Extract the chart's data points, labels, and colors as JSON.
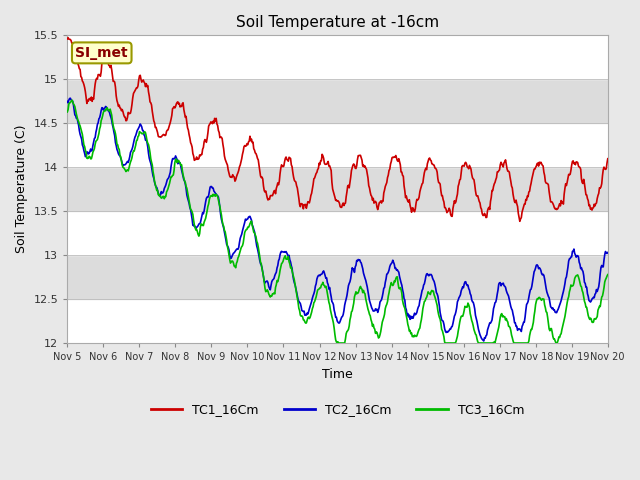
{
  "title": "Soil Temperature at -16cm",
  "xlabel": "Time",
  "ylabel": "Soil Temperature (C)",
  "ylim": [
    12.0,
    15.5
  ],
  "yticks": [
    12.0,
    12.5,
    13.0,
    13.5,
    14.0,
    14.5,
    15.0,
    15.5
  ],
  "xtick_labels": [
    "Nov 5",
    "Nov 6",
    "Nov 7",
    "Nov 8",
    "Nov 9",
    "Nov 10",
    "Nov 11",
    "Nov 12",
    "Nov 13",
    "Nov 14",
    "Nov 15",
    "Nov 16",
    "Nov 17",
    "Nov 18",
    "Nov 19",
    "Nov 20"
  ],
  "fig_bg_color": "#e8e8e8",
  "plot_bg_color": "#f0f0f0",
  "band_colors": [
    "#ffffff",
    "#dcdcdc"
  ],
  "line_colors": [
    "#cc0000",
    "#0000cc",
    "#00bb00"
  ],
  "line_width": 1.2,
  "legend_labels": [
    "TC1_16Cm",
    "TC2_16Cm",
    "TC3_16Cm"
  ],
  "annotation_text": "SI_met",
  "annotation_bg": "#ffffcc",
  "annotation_border": "#999900",
  "annotation_text_color": "#880000",
  "title_fontsize": 11,
  "axis_fontsize": 9,
  "tick_fontsize": 8,
  "legend_fontsize": 9
}
